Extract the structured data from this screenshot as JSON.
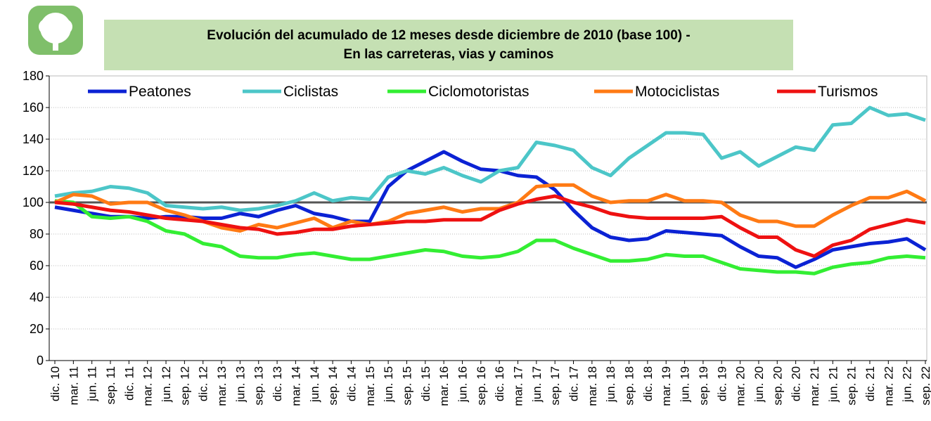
{
  "chart_data": {
    "type": "line",
    "title": [
      "Evolución del acumulado de 12 meses desde diciembre de 2010 (base 100) -",
      "En las carreteras, vias y caminos"
    ],
    "categories": [
      "dic. 10",
      "mar. 11",
      "jun. 11",
      "sep. 11",
      "dic. 11",
      "mar. 12",
      "jun. 12",
      "sep. 12",
      "dic. 12",
      "mar. 13",
      "jun. 13",
      "sep. 13",
      "dic. 13",
      "mar. 14",
      "jun. 14",
      "sep. 14",
      "dic. 14",
      "mar. 15",
      "jun. 15",
      "sep. 15",
      "dic. 15",
      "mar. 16",
      "jun. 16",
      "sep. 16",
      "dic. 16",
      "mar. 17",
      "jun. 17",
      "sep. 17",
      "dic. 17",
      "mar. 18",
      "jun. 18",
      "sep. 18",
      "dic. 18",
      "mar. 19",
      "jun. 19",
      "sep. 19",
      "dic. 19",
      "mar. 20",
      "jun. 20",
      "sep. 20",
      "dic. 20",
      "mar. 21",
      "jun. 21",
      "sep. 21",
      "dic. 21",
      "mar. 22",
      "jun. 22",
      "sep. 22"
    ],
    "series": [
      {
        "name": "Peatones",
        "color": "#0b22d4",
        "values": [
          97,
          95,
          93,
          91,
          91,
          90,
          91,
          91,
          90,
          90,
          93,
          91,
          95,
          98,
          93,
          91,
          88,
          88,
          110,
          120,
          126,
          132,
          126,
          121,
          120,
          117,
          116,
          108,
          95,
          84,
          78,
          76,
          77,
          82,
          81,
          80,
          79,
          72,
          66,
          65,
          59,
          64,
          70,
          72,
          74,
          75,
          77,
          70
        ]
      },
      {
        "name": "Ciclistas",
        "color": "#4cc6c8",
        "values": [
          104,
          106,
          107,
          110,
          109,
          106,
          98,
          97,
          96,
          97,
          95,
          96,
          98,
          101,
          106,
          101,
          103,
          102,
          116,
          120,
          118,
          122,
          117,
          113,
          120,
          122,
          138,
          136,
          133,
          122,
          117,
          128,
          136,
          144,
          144,
          143,
          128,
          132,
          123,
          129,
          135,
          133,
          149,
          150,
          160,
          155,
          156,
          152
        ]
      },
      {
        "name": "Ciclomotoristas",
        "color": "#33ee33",
        "values": [
          101,
          100,
          91,
          90,
          91,
          88,
          82,
          80,
          74,
          72,
          66,
          65,
          65,
          67,
          68,
          66,
          64,
          64,
          66,
          68,
          70,
          69,
          66,
          65,
          66,
          69,
          76,
          76,
          71,
          67,
          63,
          63,
          64,
          67,
          66,
          66,
          62,
          58,
          57,
          56,
          56,
          55,
          59,
          61,
          62,
          65,
          66,
          65
        ]
      },
      {
        "name": "Motociclistas",
        "color": "#ff7a14",
        "values": [
          100,
          105,
          104,
          99,
          100,
          100,
          95,
          92,
          88,
          84,
          82,
          86,
          84,
          87,
          90,
          84,
          88,
          86,
          88,
          93,
          95,
          97,
          94,
          96,
          96,
          100,
          110,
          111,
          111,
          104,
          100,
          101,
          101,
          105,
          101,
          101,
          100,
          92,
          88,
          88,
          85,
          85,
          92,
          98,
          103,
          103,
          107,
          101
        ]
      },
      {
        "name": "Turismos",
        "color": "#ee1111",
        "values": [
          100,
          99,
          97,
          95,
          94,
          92,
          90,
          89,
          88,
          86,
          84,
          83,
          80,
          81,
          83,
          83,
          85,
          86,
          87,
          88,
          88,
          89,
          89,
          89,
          95,
          99,
          102,
          104,
          100,
          97,
          93,
          91,
          90,
          90,
          90,
          90,
          91,
          84,
          78,
          78,
          70,
          66,
          73,
          76,
          83,
          86,
          89,
          87
        ]
      }
    ],
    "reference_line": 100,
    "reference_color": "#555555",
    "ylim": [
      0,
      180
    ],
    "yticks": [
      0,
      20,
      40,
      60,
      80,
      100,
      120,
      140,
      160,
      180
    ],
    "grid": true,
    "legend": "top"
  }
}
